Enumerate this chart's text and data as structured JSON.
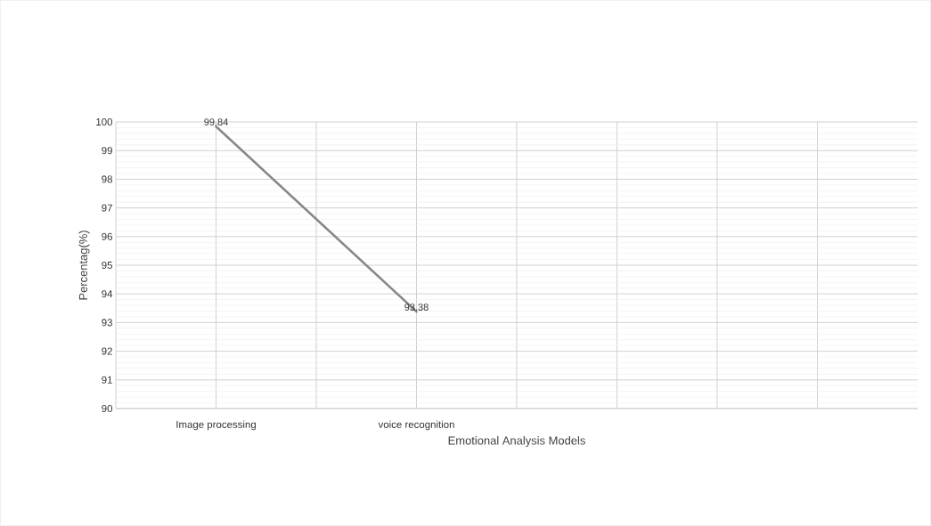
{
  "chart_data": {
    "type": "line",
    "xlabel": "Emotional Analysis Models",
    "ylabel": "Percentag(%)",
    "categories": [
      "Image  processing",
      "voice recognition",
      null,
      null
    ],
    "series": [
      {
        "color": "#878787",
        "values": [
          99.84,
          93.38,
          null,
          null
        ]
      }
    ],
    "ylim": [
      90,
      100
    ],
    "yticks": [
      90,
      91,
      92,
      93,
      94,
      95,
      96,
      97,
      98,
      99,
      100
    ],
    "grid": true,
    "data_labels": true,
    "marker": "none",
    "line_style": "solid"
  }
}
